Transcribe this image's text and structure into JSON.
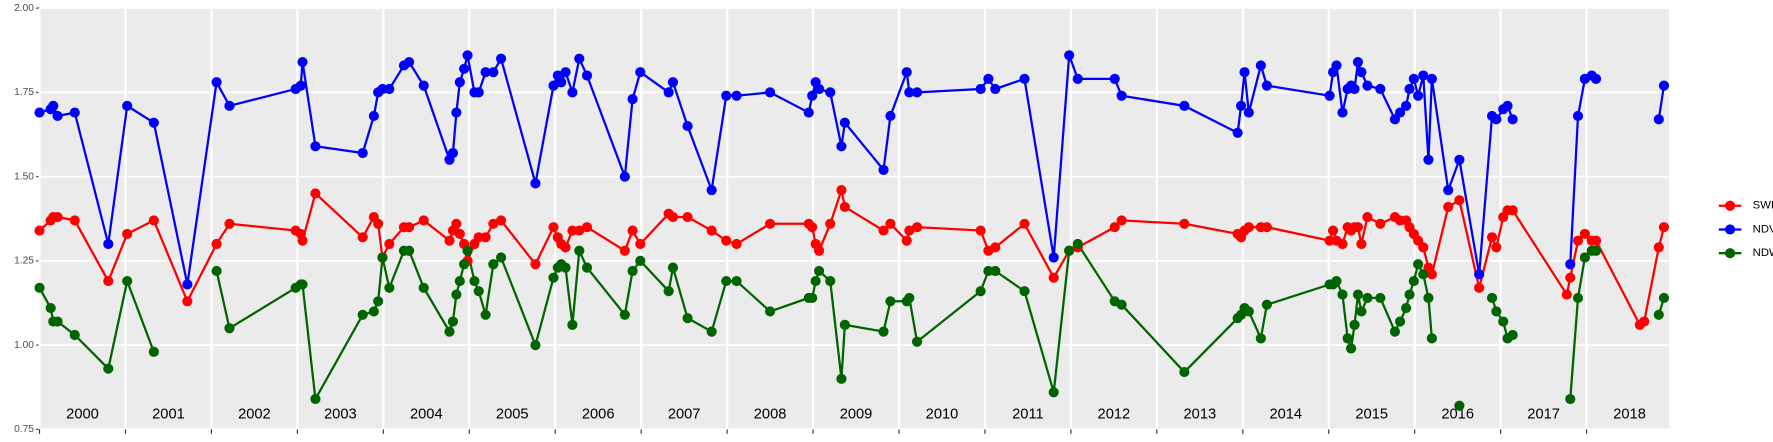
{
  "chart_data": {
    "type": "line",
    "x": [
      2000.0,
      2000.13,
      2000.16,
      2000.21,
      2000.41,
      2000.8,
      2001.02,
      2001.33,
      2001.72,
      2002.06,
      2002.21,
      2002.98,
      2003.04,
      2003.06,
      2003.21,
      2003.76,
      2003.89,
      2003.94,
      2003.99,
      2004.07,
      2004.24,
      2004.3,
      2004.47,
      2004.77,
      2004.81,
      2004.85,
      2004.89,
      2004.94,
      2004.98,
      2005.06,
      2005.11,
      2005.19,
      2005.28,
      2005.37,
      2005.77,
      2005.98,
      2006.03,
      2006.07,
      2006.12,
      2006.2,
      2006.28,
      2006.37,
      2006.81,
      2006.9,
      2006.99,
      2007.32,
      2007.37,
      2007.54,
      2007.82,
      2007.99,
      2008.11,
      2008.5,
      2008.95,
      2008.99,
      2009.03,
      2009.07,
      2009.2,
      2009.33,
      2009.37,
      2009.82,
      2009.9,
      2010.09,
      2010.12,
      2010.21,
      2010.95,
      2011.04,
      2011.12,
      2011.46,
      2011.8,
      2011.98,
      2012.08,
      2012.51,
      2012.59,
      2013.32,
      2013.94,
      2013.98,
      2014.02,
      2014.07,
      2014.21,
      2014.28,
      2015.01,
      2015.05,
      2015.09,
      2015.16,
      2015.22,
      2015.26,
      2015.3,
      2015.34,
      2015.38,
      2015.45,
      2015.6,
      2015.77,
      2015.83,
      2015.9,
      2015.94,
      2015.99,
      2016.04,
      2016.1,
      2016.16,
      2016.2,
      2016.39,
      2016.52,
      2016.75,
      2016.9,
      2016.95,
      2017.03,
      2017.08,
      2017.14,
      2017.77,
      2017.81,
      2017.9,
      2017.98,
      2018.06,
      2018.11,
      2018.62,
      2018.67,
      2018.84,
      2018.9
    ],
    "series": [
      {
        "name": "SWIR",
        "color": "#ff0000",
        "values": [
          1.34,
          1.37,
          1.38,
          1.38,
          1.37,
          1.19,
          1.33,
          1.37,
          1.13,
          1.3,
          1.36,
          1.34,
          1.33,
          1.31,
          1.45,
          1.32,
          1.38,
          1.36,
          1.26,
          1.3,
          1.35,
          1.35,
          1.37,
          1.31,
          1.34,
          1.36,
          1.33,
          1.3,
          1.25,
          1.3,
          1.32,
          1.32,
          1.36,
          1.37,
          1.24,
          1.35,
          1.32,
          1.3,
          1.29,
          1.34,
          1.34,
          1.35,
          1.28,
          1.34,
          1.3,
          1.39,
          1.38,
          1.38,
          1.34,
          1.31,
          1.3,
          1.36,
          1.36,
          1.35,
          1.3,
          1.28,
          1.36,
          1.46,
          1.41,
          1.34,
          1.36,
          1.31,
          1.34,
          1.35,
          1.34,
          1.28,
          1.29,
          1.36,
          1.2,
          1.28,
          1.29,
          1.35,
          1.37,
          1.36,
          1.33,
          1.32,
          1.34,
          1.35,
          1.35,
          1.35,
          1.31,
          1.34,
          1.31,
          1.3,
          1.35,
          1.34,
          1.35,
          1.35,
          1.3,
          1.38,
          1.36,
          1.38,
          1.37,
          1.37,
          1.35,
          1.33,
          1.31,
          1.29,
          1.23,
          1.21,
          1.41,
          1.43,
          1.17,
          1.32,
          1.29,
          1.38,
          1.4,
          1.4,
          1.15,
          1.2,
          1.31,
          1.33,
          1.31,
          1.31,
          1.06,
          1.07,
          1.29,
          1.35
        ]
      },
      {
        "name": "NDVI",
        "color": "#0000ff",
        "values": [
          1.69,
          1.7,
          1.71,
          1.68,
          1.69,
          1.3,
          1.71,
          1.66,
          1.18,
          1.78,
          1.71,
          1.76,
          1.77,
          1.84,
          1.59,
          1.57,
          1.68,
          1.75,
          1.76,
          1.76,
          1.83,
          1.84,
          1.77,
          1.55,
          1.57,
          1.69,
          1.78,
          1.82,
          1.86,
          1.75,
          1.75,
          1.81,
          1.81,
          1.85,
          1.48,
          1.77,
          1.8,
          1.78,
          1.81,
          1.75,
          1.85,
          1.8,
          1.5,
          1.73,
          1.81,
          1.75,
          1.78,
          1.65,
          1.46,
          1.74,
          1.74,
          1.75,
          1.69,
          1.74,
          1.78,
          1.76,
          1.75,
          1.59,
          1.66,
          1.52,
          1.68,
          1.81,
          1.75,
          1.75,
          1.76,
          1.79,
          1.76,
          1.79,
          1.26,
          1.86,
          1.79,
          1.79,
          1.74,
          1.71,
          1.63,
          1.71,
          1.81,
          1.69,
          1.83,
          1.77,
          1.74,
          1.81,
          1.83,
          1.69,
          1.76,
          1.77,
          1.76,
          1.84,
          1.81,
          1.77,
          1.76,
          1.67,
          1.69,
          1.71,
          1.76,
          1.79,
          1.74,
          1.8,
          1.55,
          1.79,
          1.46,
          1.55,
          1.21,
          1.68,
          1.67,
          1.7,
          1.71,
          1.67,
          null,
          1.24,
          1.68,
          1.79,
          1.8,
          1.79,
          null,
          null,
          1.67,
          1.77
        ]
      },
      {
        "name": "NDWI",
        "color": "#006400",
        "values": [
          1.17,
          1.11,
          1.07,
          1.07,
          1.03,
          0.93,
          1.19,
          0.98,
          null,
          1.22,
          1.05,
          1.17,
          1.18,
          1.18,
          0.84,
          1.09,
          1.1,
          1.13,
          1.26,
          1.17,
          1.28,
          1.28,
          1.17,
          1.04,
          1.07,
          1.15,
          1.19,
          1.24,
          1.28,
          1.19,
          1.16,
          1.09,
          1.24,
          1.26,
          1.0,
          1.2,
          1.23,
          1.24,
          1.23,
          1.06,
          1.28,
          1.23,
          1.09,
          1.22,
          1.25,
          1.16,
          1.23,
          1.08,
          1.04,
          1.19,
          1.19,
          1.1,
          1.14,
          1.14,
          1.19,
          1.22,
          1.19,
          0.9,
          1.06,
          1.04,
          1.13,
          1.13,
          1.14,
          1.01,
          1.16,
          1.22,
          1.22,
          1.16,
          0.86,
          1.28,
          1.3,
          1.13,
          1.12,
          0.92,
          1.08,
          1.09,
          1.11,
          1.1,
          1.02,
          1.12,
          1.18,
          1.18,
          1.19,
          1.15,
          1.02,
          0.99,
          1.06,
          1.15,
          1.1,
          1.14,
          1.14,
          1.04,
          1.07,
          1.11,
          1.15,
          1.19,
          1.24,
          1.21,
          1.14,
          1.02,
          null,
          0.82,
          null,
          1.14,
          1.1,
          1.07,
          1.02,
          1.03,
          null,
          0.84,
          1.14,
          1.26,
          1.28,
          1.28,
          null,
          null,
          1.09,
          1.14
        ]
      }
    ],
    "xlim": [
      2000,
      2018.96
    ],
    "xticks": [
      2000,
      2001,
      2002,
      2003,
      2004,
      2005,
      2006,
      2007,
      2008,
      2009,
      2010,
      2011,
      2012,
      2013,
      2014,
      2015,
      2016,
      2017,
      2018
    ],
    "ylim": [
      0.75,
      2.0
    ],
    "yticks": [
      {
        "value": 0.75,
        "label": "0.75"
      },
      {
        "value": 1.0,
        "label": "1.00"
      },
      {
        "value": 1.25,
        "label": "1.25"
      },
      {
        "value": 1.5,
        "label": "1.50"
      },
      {
        "value": 1.75,
        "label": "1.75"
      },
      {
        "value": 2.0,
        "label": "2.00"
      }
    ],
    "grid": true,
    "legend": "right"
  }
}
